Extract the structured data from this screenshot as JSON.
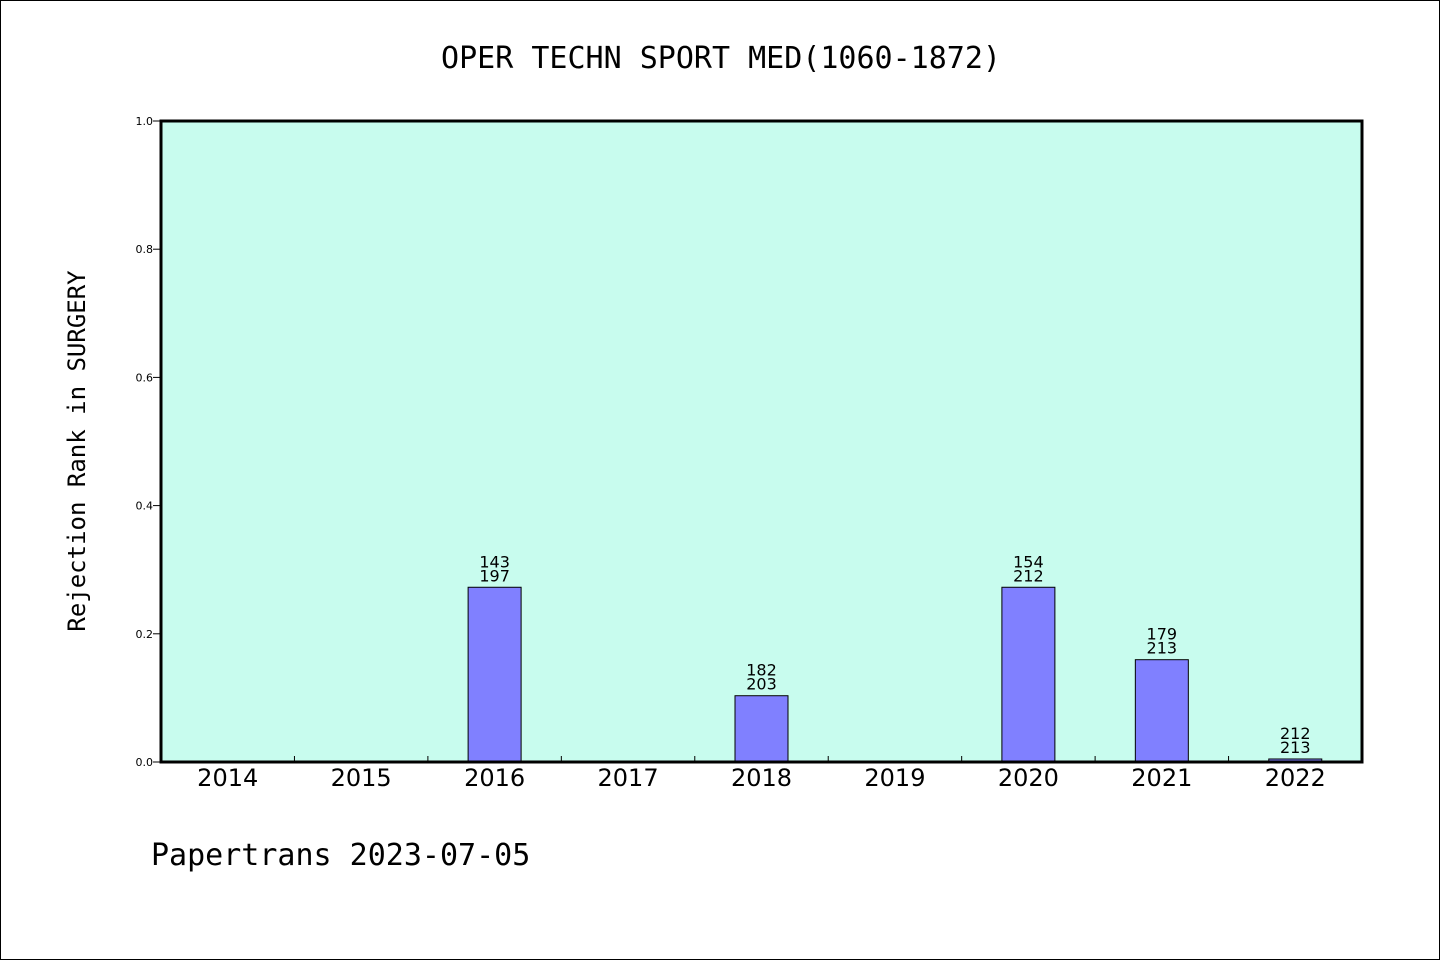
{
  "chart_data": {
    "type": "bar",
    "title": "OPER TECHN SPORT MED(1060-1872)",
    "xlabel": "",
    "ylabel": "Rejection Rank in SURGERY",
    "ylim": [
      0,
      1.0
    ],
    "yticks": [
      "0.0",
      "0.2",
      "0.4",
      "0.6",
      "0.8",
      "1.0"
    ],
    "categories": [
      "2014",
      "2015",
      "2016",
      "2017",
      "2018",
      "2019",
      "2020",
      "2021",
      "2022"
    ],
    "values": [
      0,
      0,
      0.2726,
      0,
      0.1034,
      0,
      0.2726,
      0.1596,
      0.0047
    ],
    "bar_labels": [
      null,
      null,
      [
        "143",
        "197"
      ],
      null,
      [
        "182",
        "203"
      ],
      null,
      [
        "154",
        "212"
      ],
      [
        "179",
        "213"
      ],
      [
        "212",
        "213"
      ]
    ],
    "grid": false,
    "legend": "none",
    "colors": {
      "plot_background": "#c8fcee",
      "bar_fill": "#8080ff",
      "bar_stroke": "#000000"
    }
  },
  "footer": {
    "text": "Papertrans 2023-07-05"
  }
}
